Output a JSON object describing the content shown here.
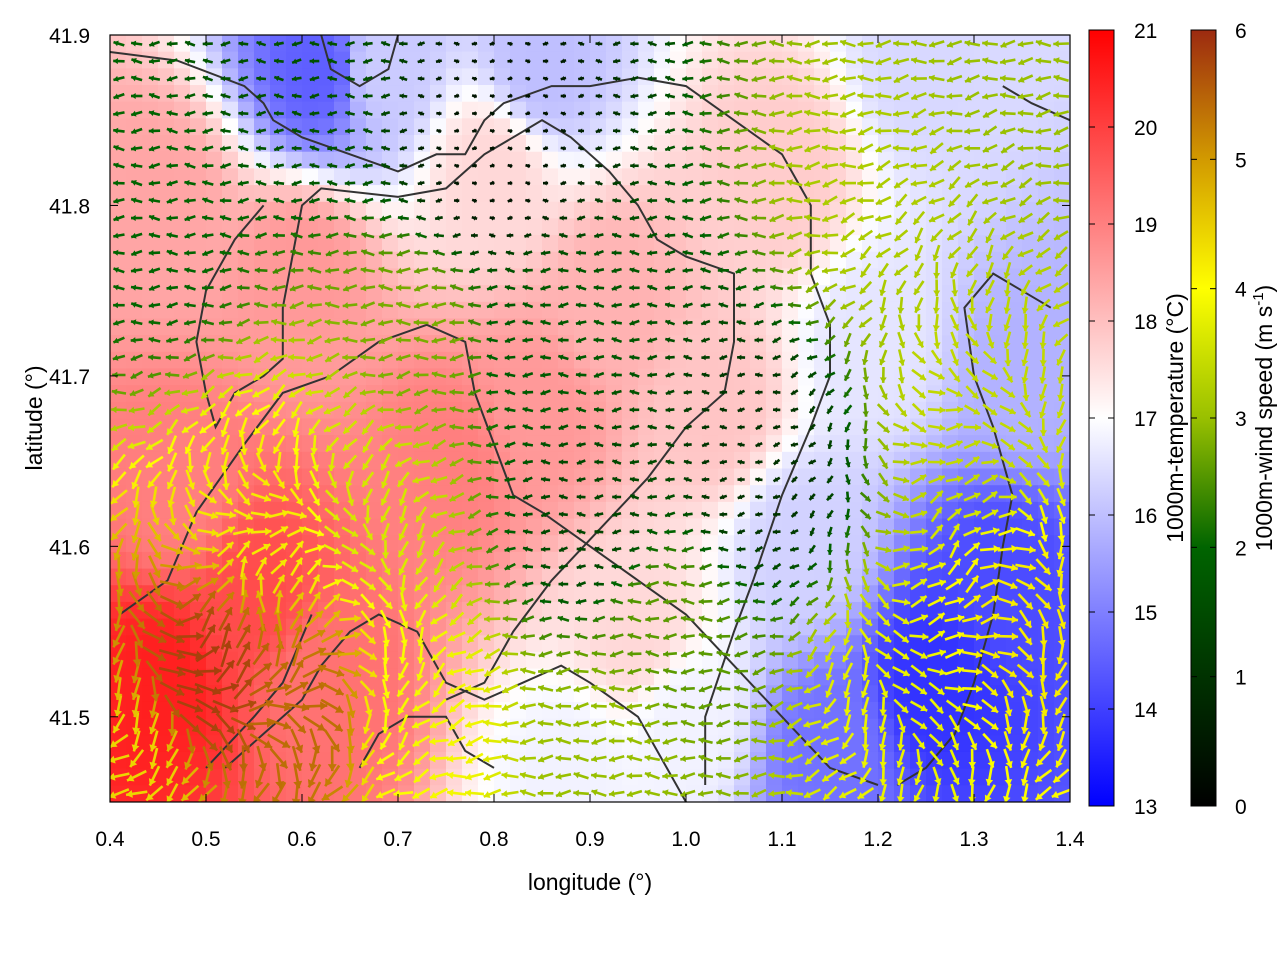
{
  "chart_data": {
    "type": "heatmap",
    "xlabel": "longitude (°)",
    "ylabel": "latitude (°)",
    "xlim": [
      0.4,
      1.4
    ],
    "ylim": [
      41.45,
      41.9
    ],
    "x_ticks": [
      "0.4",
      "0.5",
      "0.6",
      "0.7",
      "0.8",
      "0.9",
      "1.0",
      "1.1",
      "1.2",
      "1.3",
      "1.4"
    ],
    "x_tick_values": [
      0.4,
      0.5,
      0.6,
      0.7,
      0.8,
      0.9,
      1.0,
      1.1,
      1.2,
      1.3,
      1.4
    ],
    "y_ticks": [
      "41.5",
      "41.6",
      "41.7",
      "41.8",
      "41.9"
    ],
    "y_tick_values": [
      41.5,
      41.6,
      41.7,
      41.8,
      41.9
    ],
    "overlay": "wind vectors colored by speed with topography contour lines",
    "temperature_colorbar": {
      "label": "1000m-temperature (°C)",
      "range": [
        13,
        21
      ],
      "ticks": [
        "13",
        "14",
        "15",
        "16",
        "17",
        "18",
        "19",
        "20",
        "21"
      ],
      "tick_values": [
        13,
        14,
        15,
        16,
        17,
        18,
        19,
        20,
        21
      ],
      "colors": [
        "#0000ff",
        "#ffffff",
        "#ff0000"
      ]
    },
    "wind_colorbar": {
      "label_prefix": "1000m-wind speed (m s",
      "label_exponent": "-1",
      "label_suffix": ")",
      "range": [
        0,
        6
      ],
      "ticks": [
        "0",
        "1",
        "2",
        "3",
        "4",
        "5",
        "6"
      ],
      "tick_values": [
        0,
        1,
        2,
        3,
        4,
        5,
        6
      ],
      "colors": [
        "#000000",
        "#006400",
        "#99c000",
        "#ffff00",
        "#d29a00",
        "#9c2a10"
      ]
    },
    "temperature_field": [
      {
        "lon": 0.45,
        "lat": 41.52,
        "t": 20.5
      },
      {
        "lon": 0.55,
        "lat": 41.57,
        "t": 19.8
      },
      {
        "lon": 0.62,
        "lat": 41.52,
        "t": 19.2
      },
      {
        "lon": 0.47,
        "lat": 41.63,
        "t": 19.0
      },
      {
        "lon": 0.75,
        "lat": 41.65,
        "t": 19.0
      },
      {
        "lon": 0.85,
        "lat": 41.68,
        "t": 18.6
      },
      {
        "lon": 0.92,
        "lat": 41.74,
        "t": 18.2
      },
      {
        "lon": 0.6,
        "lat": 41.76,
        "t": 18.6
      },
      {
        "lon": 0.45,
        "lat": 41.8,
        "t": 18.4
      },
      {
        "lon": 0.8,
        "lat": 41.82,
        "t": 17.6
      },
      {
        "lon": 1.1,
        "lat": 41.82,
        "t": 17.8
      },
      {
        "lon": 1.03,
        "lat": 41.68,
        "t": 17.9
      },
      {
        "lon": 0.95,
        "lat": 41.55,
        "t": 17.6
      },
      {
        "lon": 1.0,
        "lat": 41.5,
        "t": 16.8
      },
      {
        "lon": 0.68,
        "lat": 41.88,
        "t": 16.2
      },
      {
        "lon": 0.62,
        "lat": 41.88,
        "t": 14.5
      },
      {
        "lon": 0.85,
        "lat": 41.88,
        "t": 16.0
      },
      {
        "lon": 1.25,
        "lat": 41.88,
        "t": 16.4
      },
      {
        "lon": 1.2,
        "lat": 41.72,
        "t": 16.6
      },
      {
        "lon": 1.35,
        "lat": 41.7,
        "t": 15.8
      },
      {
        "lon": 1.26,
        "lat": 41.52,
        "t": 13.8
      },
      {
        "lon": 1.33,
        "lat": 41.58,
        "t": 14.2
      },
      {
        "lon": 1.15,
        "lat": 41.48,
        "t": 14.8
      },
      {
        "lon": 1.12,
        "lat": 41.6,
        "t": 16.3
      },
      {
        "lon": 0.88,
        "lat": 41.47,
        "t": 16.8
      }
    ],
    "wind_speed_field": [
      {
        "lon": 0.5,
        "lat": 41.52,
        "s": 5.8
      },
      {
        "lon": 0.6,
        "lat": 41.5,
        "s": 5.4
      },
      {
        "lon": 0.56,
        "lat": 41.62,
        "s": 4.2
      },
      {
        "lon": 0.67,
        "lat": 41.63,
        "s": 3.6
      },
      {
        "lon": 0.72,
        "lat": 41.5,
        "s": 3.9
      },
      {
        "lon": 0.43,
        "lat": 41.47,
        "s": 4.4
      },
      {
        "lon": 0.72,
        "lat": 41.72,
        "s": 2.8
      },
      {
        "lon": 0.85,
        "lat": 41.72,
        "s": 1.8
      },
      {
        "lon": 0.8,
        "lat": 41.83,
        "s": 0.4
      },
      {
        "lon": 0.9,
        "lat": 41.62,
        "s": 1.4
      },
      {
        "lon": 0.45,
        "lat": 41.78,
        "s": 2.0
      },
      {
        "lon": 1.07,
        "lat": 41.65,
        "s": 1.0
      },
      {
        "lon": 0.98,
        "lat": 41.55,
        "s": 2.6
      },
      {
        "lon": 1.2,
        "lat": 41.8,
        "s": 3.2
      },
      {
        "lon": 1.3,
        "lat": 41.68,
        "s": 3.4
      },
      {
        "lon": 1.35,
        "lat": 41.55,
        "s": 4.2
      },
      {
        "lon": 1.22,
        "lat": 41.5,
        "s": 3.8
      },
      {
        "lon": 0.92,
        "lat": 41.48,
        "s": 3.0
      },
      {
        "lon": 0.6,
        "lat": 41.88,
        "s": 1.6
      },
      {
        "lon": 1.35,
        "lat": 41.88,
        "s": 3.0
      }
    ],
    "contours": [
      [
        [
          0.4,
          41.89
        ],
        [
          0.47,
          41.885
        ],
        [
          0.54,
          41.87
        ],
        [
          0.56,
          41.86
        ],
        [
          0.57,
          41.85
        ],
        [
          0.6,
          41.84
        ],
        [
          0.65,
          41.83
        ],
        [
          0.7,
          41.82
        ],
        [
          0.74,
          41.83
        ],
        [
          0.77,
          41.83
        ],
        [
          0.79,
          41.85
        ],
        [
          0.81,
          41.86
        ],
        [
          0.86,
          41.87
        ],
        [
          0.9,
          41.87
        ],
        [
          0.95,
          41.875
        ],
        [
          1.0,
          41.87
        ],
        [
          1.05,
          41.85
        ],
        [
          1.1,
          41.83
        ],
        [
          1.13,
          41.8
        ],
        [
          1.13,
          41.76
        ],
        [
          1.15,
          41.73
        ],
        [
          1.15,
          41.7
        ],
        [
          1.13,
          41.67
        ],
        [
          1.1,
          41.63
        ],
        [
          1.07,
          41.58
        ],
        [
          1.05,
          41.55
        ],
        [
          1.02,
          41.5
        ],
        [
          1.02,
          41.46
        ]
      ],
      [
        [
          0.56,
          41.8
        ],
        [
          0.53,
          41.78
        ],
        [
          0.5,
          41.75
        ],
        [
          0.49,
          41.72
        ],
        [
          0.5,
          41.69
        ],
        [
          0.51,
          41.67
        ],
        [
          0.53,
          41.69
        ],
        [
          0.56,
          41.7
        ],
        [
          0.58,
          41.71
        ],
        [
          0.58,
          41.74
        ],
        [
          0.59,
          41.77
        ],
        [
          0.6,
          41.8
        ],
        [
          0.62,
          41.81
        ],
        [
          0.7,
          41.805
        ],
        [
          0.75,
          41.81
        ],
        [
          0.79,
          41.83
        ],
        [
          0.82,
          41.84
        ],
        [
          0.85,
          41.85
        ],
        [
          0.88,
          41.84
        ],
        [
          0.92,
          41.82
        ],
        [
          0.95,
          41.8
        ],
        [
          0.97,
          41.78
        ],
        [
          1.0,
          41.77
        ],
        [
          1.05,
          41.76
        ],
        [
          1.05,
          41.72
        ],
        [
          1.04,
          41.69
        ],
        [
          1.0,
          41.67
        ],
        [
          0.96,
          41.64
        ],
        [
          0.91,
          41.61
        ],
        [
          0.86,
          41.58
        ],
        [
          0.82,
          41.55
        ],
        [
          0.79,
          41.52
        ],
        [
          0.75,
          41.51
        ]
      ],
      [
        [
          0.41,
          41.56
        ],
        [
          0.46,
          41.58
        ],
        [
          0.49,
          41.62
        ],
        [
          0.54,
          41.66
        ],
        [
          0.58,
          41.69
        ],
        [
          0.63,
          41.7
        ],
        [
          0.68,
          41.72
        ],
        [
          0.73,
          41.73
        ],
        [
          0.77,
          41.72
        ],
        [
          0.78,
          41.69
        ],
        [
          0.8,
          41.66
        ],
        [
          0.82,
          41.63
        ],
        [
          0.85,
          41.62
        ],
        [
          0.9,
          41.6
        ],
        [
          0.95,
          41.58
        ],
        [
          1.0,
          41.56
        ],
        [
          1.05,
          41.53
        ],
        [
          1.1,
          41.5
        ],
        [
          1.15,
          41.47
        ],
        [
          1.2,
          41.46
        ]
      ],
      [
        [
          0.52,
          41.47
        ],
        [
          0.56,
          41.49
        ],
        [
          0.6,
          41.51
        ],
        [
          0.62,
          41.53
        ],
        [
          0.65,
          41.55
        ],
        [
          0.68,
          41.56
        ],
        [
          0.72,
          41.55
        ],
        [
          0.75,
          41.52
        ],
        [
          0.79,
          41.51
        ],
        [
          0.83,
          41.52
        ],
        [
          0.87,
          41.53
        ],
        [
          0.9,
          41.52
        ],
        [
          0.95,
          41.5
        ],
        [
          0.98,
          41.47
        ],
        [
          1.0,
          41.45
        ]
      ],
      [
        [
          0.66,
          41.47
        ],
        [
          0.68,
          41.49
        ],
        [
          0.71,
          41.5
        ],
        [
          0.75,
          41.5
        ],
        [
          0.77,
          41.48
        ],
        [
          0.8,
          41.47
        ]
      ],
      [
        [
          0.62,
          41.9
        ],
        [
          0.63,
          41.88
        ],
        [
          0.66,
          41.87
        ],
        [
          0.69,
          41.88
        ],
        [
          0.7,
          41.9
        ]
      ],
      [
        [
          1.22,
          41.46
        ],
        [
          1.25,
          41.47
        ],
        [
          1.28,
          41.49
        ],
        [
          1.3,
          41.52
        ],
        [
          1.32,
          41.56
        ],
        [
          1.33,
          41.6
        ],
        [
          1.34,
          41.63
        ],
        [
          1.32,
          41.67
        ],
        [
          1.3,
          41.7
        ],
        [
          1.29,
          41.74
        ],
        [
          1.32,
          41.76
        ],
        [
          1.35,
          41.75
        ],
        [
          1.38,
          41.74
        ]
      ],
      [
        [
          1.33,
          41.87
        ],
        [
          1.36,
          41.86
        ],
        [
          1.4,
          41.85
        ]
      ],
      [
        [
          0.5,
          41.47
        ],
        [
          0.55,
          41.5
        ],
        [
          0.58,
          41.52
        ],
        [
          0.61,
          41.56
        ]
      ]
    ]
  }
}
